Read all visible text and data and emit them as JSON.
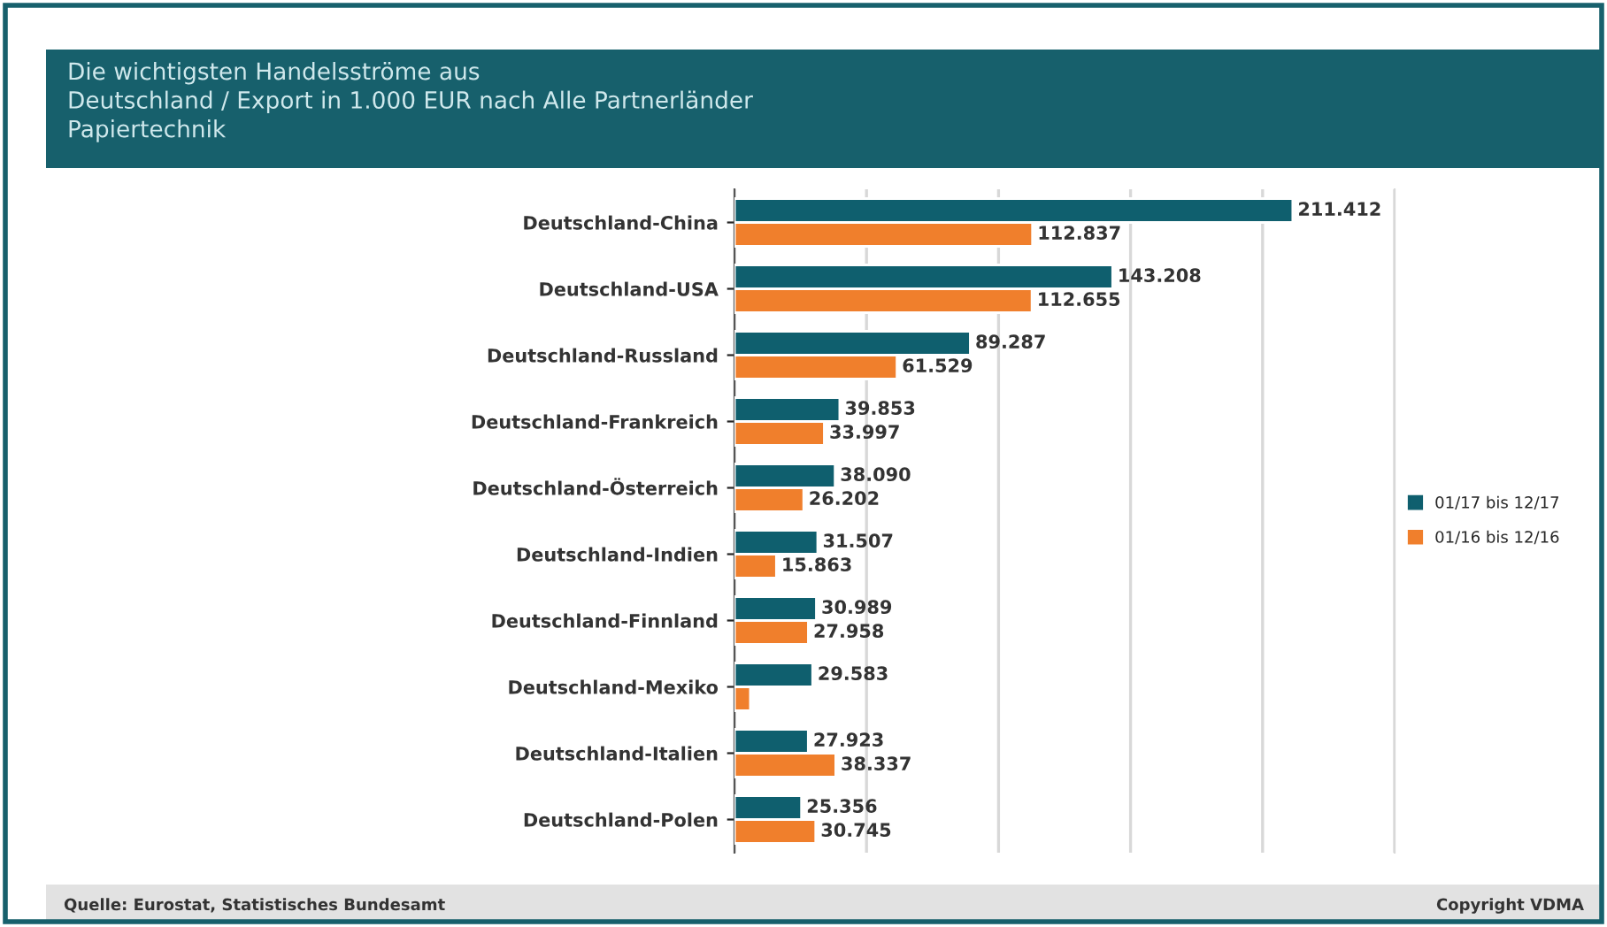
{
  "chart_data": {
    "type": "bar",
    "orientation": "horizontal",
    "title": "Die wichtigsten Handelsströme aus\nDeutschland / Export in 1.000 EUR nach Alle Partnerländer\nPapiertechnik",
    "categories": [
      "Deutschland-China",
      "Deutschland-USA",
      "Deutschland-Russland",
      "Deutschland-Frankreich",
      "Deutschland-Österreich",
      "Deutschland-Indien",
      "Deutschland-Finnland",
      "Deutschland-Mexiko",
      "Deutschland-Italien",
      "Deutschland-Polen"
    ],
    "series": [
      {
        "name": "01/17 bis 12/17",
        "color": "#0f5f6e",
        "values": [
          211412,
          143208,
          89287,
          39853,
          38090,
          31507,
          30989,
          29583,
          27923,
          25356
        ],
        "value_labels": [
          "211.412",
          "143.208",
          "89.287",
          "39.853",
          "38.090",
          "31.507",
          "30.989",
          "29.583",
          "27.923",
          "25.356"
        ]
      },
      {
        "name": "01/16 bis 12/16",
        "color": "#f07f2c",
        "values": [
          112837,
          112655,
          61529,
          33997,
          26202,
          15863,
          27958,
          6000,
          38337,
          30745
        ],
        "value_labels": [
          "112.837",
          "112.655",
          "61.529",
          "33.997",
          "26.202",
          "15.863",
          "27.958",
          null,
          "38.337",
          "30.745"
        ]
      }
    ],
    "xlim": [
      0,
      250000
    ],
    "xticks": [
      {
        "value": 0,
        "label": null
      },
      {
        "value": 50000,
        "label": null
      },
      {
        "value": 100000,
        "label": null
      },
      {
        "value": 150000,
        "label": null
      },
      {
        "value": 200000,
        "label": null
      },
      {
        "value": 250000,
        "label": null
      }
    ],
    "grid": "x",
    "legend": "right",
    "tick_labels": "y",
    "annotations": [
      "Quelle: Eurostat, Statistisches Bundesamt",
      "Copyright VDMA"
    ]
  }
}
